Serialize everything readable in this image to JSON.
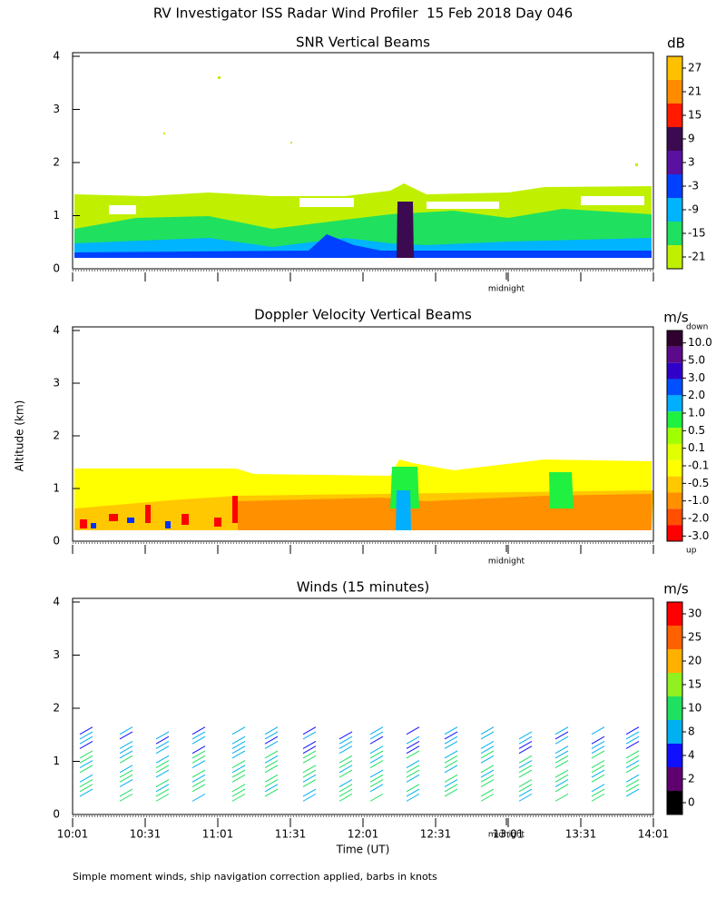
{
  "title": "RV Investigator ISS Radar Wind Profiler  15 Feb 2018 Day 046",
  "y_label": "Altitude (km)",
  "x_label": "Time (UT)",
  "note": "Simple moment winds, ship navigation correction applied, barbs in knots",
  "chart_data": [
    {
      "type": "heatmap",
      "title": "SNR Vertical Beams",
      "ylim": [
        0,
        4
      ],
      "yticks": [
        0,
        1,
        2,
        3,
        4
      ],
      "annotation": "midnight",
      "colorbar": {
        "label": "dB",
        "ticks": [
          27,
          21,
          15,
          9,
          3,
          -3,
          -9,
          -15,
          -21
        ],
        "colors": [
          "#ffc000",
          "#ff8c00",
          "#ff1a00",
          "#3c0a50",
          "#5a10a0",
          "#0040ff",
          "#00b4ff",
          "#20e060",
          "#c0f000"
        ]
      }
    },
    {
      "type": "heatmap",
      "title": "Doppler Velocity Vertical Beams",
      "ylim": [
        0,
        4
      ],
      "yticks": [
        0,
        1,
        2,
        3,
        4
      ],
      "annotation": "midnight",
      "colorbar": {
        "label": "m/s",
        "top_label": "down",
        "bottom_label": "up",
        "ticks": [
          {
            "value": 10,
            "label": "10.0"
          },
          {
            "value": 5,
            "label": "5.0"
          },
          {
            "value": 3,
            "label": "3.0"
          },
          {
            "value": 2,
            "label": "2.0"
          },
          {
            "value": 1,
            "label": "1.0"
          },
          0.5,
          0.1,
          -0.1,
          -0.5,
          {
            "value": -1,
            "label": "-1.0"
          },
          {
            "value": -2,
            "label": "-2.0"
          },
          {
            "value": -3,
            "label": "-3.0"
          }
        ],
        "colors": [
          "#300030",
          "#5a0a8a",
          "#3000c8",
          "#0050ff",
          "#00b0ff",
          "#20f040",
          "#a0ff00",
          "#e0ff00",
          "#ffff00",
          "#ffc800",
          "#ff9000",
          "#ff5000",
          "#ff0000"
        ]
      }
    },
    {
      "type": "barbs",
      "title": "Winds (15 minutes)",
      "ylim": [
        0,
        4
      ],
      "yticks": [
        0,
        1,
        2,
        3,
        4
      ],
      "annotation": "midnight",
      "categories": [
        "10:01",
        "10:31",
        "11:01",
        "11:31",
        "12:01",
        "12:31",
        "13:01",
        "13:31",
        "14:01"
      ],
      "colorbar": {
        "label": "m/s",
        "ticks": [
          30,
          25,
          20,
          15,
          10,
          8,
          4,
          2,
          0
        ],
        "colors": [
          "#ff0000",
          "#ff6000",
          "#ffb000",
          "#90f020",
          "#20e060",
          "#00b0f0",
          "#1010ff",
          "#600070",
          "#000000"
        ]
      }
    }
  ]
}
